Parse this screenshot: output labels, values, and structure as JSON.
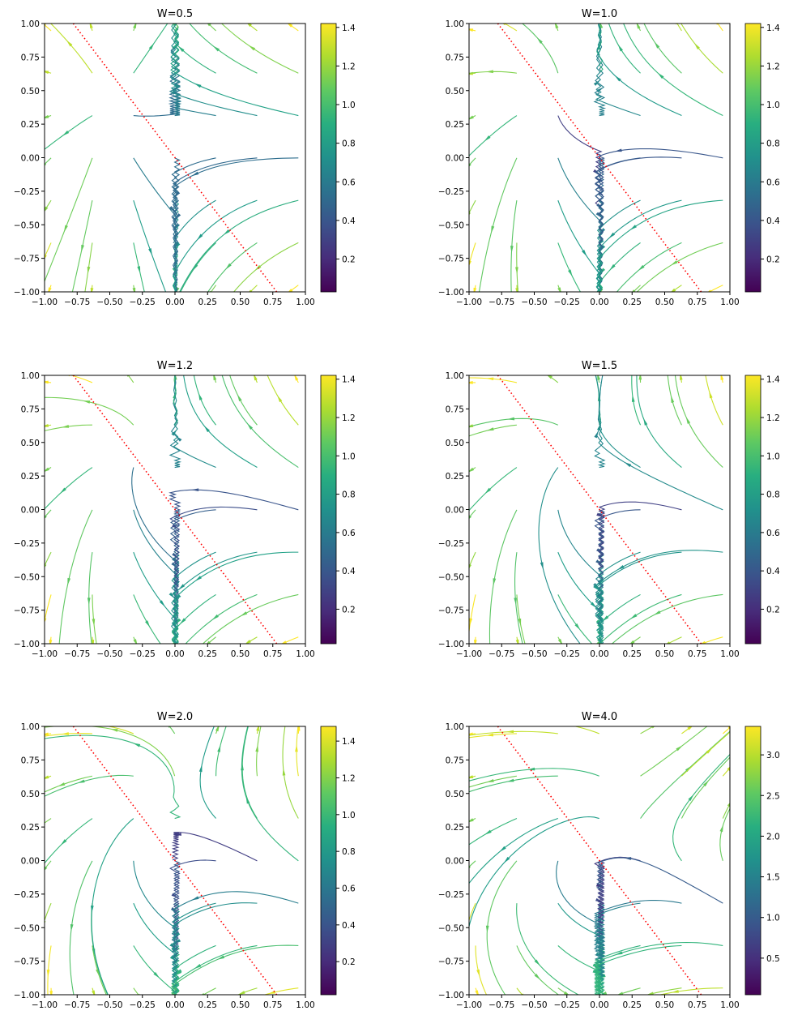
{
  "figure": {
    "colormap": "viridis",
    "line_color": "#ff0000",
    "frame_color": "#000000"
  },
  "chart_data": [
    {
      "type": "streamplot",
      "title": "W=0.5",
      "xlim": [
        -1,
        1
      ],
      "ylim": [
        -1,
        1
      ],
      "x_ticks": [
        -1.0,
        -0.75,
        -0.5,
        -0.25,
        0.0,
        0.25,
        0.5,
        0.75,
        1.0
      ],
      "y_ticks": [
        -1.0,
        -0.75,
        -0.5,
        -0.25,
        0.0,
        0.25,
        0.5,
        0.75,
        1.0
      ],
      "x_tick_labels": [
        "−1.00",
        "−0.75",
        "−0.50",
        "−0.25",
        "0.00",
        "0.25",
        "0.50",
        "0.75",
        "1.00"
      ],
      "y_tick_labels": [
        "−1.00",
        "−0.75",
        "−0.50",
        "−0.25",
        "0.00",
        "0.25",
        "0.50",
        "0.75",
        "1.00"
      ],
      "W": 0.5,
      "colorbar": {
        "min": 0.03,
        "max": 1.42,
        "ticks": [
          0.2,
          0.4,
          0.6,
          0.8,
          1.0,
          1.2,
          1.4
        ],
        "tick_labels": [
          "0.2",
          "0.4",
          "0.6",
          "0.8",
          "1.0",
          "1.2",
          "1.4"
        ]
      },
      "dotted_line": {
        "x": [
          -0.78,
          0.78
        ],
        "y": [
          1.0,
          -1.0
        ],
        "color": "#ff0000",
        "style": "dotted"
      },
      "grid": false
    },
    {
      "type": "streamplot",
      "title": "W=1.0",
      "xlim": [
        -1,
        1
      ],
      "ylim": [
        -1,
        1
      ],
      "x_ticks": [
        -1.0,
        -0.75,
        -0.5,
        -0.25,
        0.0,
        0.25,
        0.5,
        0.75,
        1.0
      ],
      "y_ticks": [
        -1.0,
        -0.75,
        -0.5,
        -0.25,
        0.0,
        0.25,
        0.5,
        0.75,
        1.0
      ],
      "x_tick_labels": [
        "−1.00",
        "−0.75",
        "−0.50",
        "−0.25",
        "0.00",
        "0.25",
        "0.50",
        "0.75",
        "1.00"
      ],
      "y_tick_labels": [
        "−1.00",
        "−0.75",
        "−0.50",
        "−0.25",
        "0.00",
        "0.25",
        "0.50",
        "0.75",
        "1.00"
      ],
      "W": 1.0,
      "colorbar": {
        "min": 0.03,
        "max": 1.42,
        "ticks": [
          0.2,
          0.4,
          0.6,
          0.8,
          1.0,
          1.2,
          1.4
        ],
        "tick_labels": [
          "0.2",
          "0.4",
          "0.6",
          "0.8",
          "1.0",
          "1.2",
          "1.4"
        ]
      },
      "dotted_line": {
        "x": [
          -0.78,
          0.78
        ],
        "y": [
          1.0,
          -1.0
        ],
        "color": "#ff0000",
        "style": "dotted"
      },
      "grid": false
    },
    {
      "type": "streamplot",
      "title": "W=1.2",
      "xlim": [
        -1,
        1
      ],
      "ylim": [
        -1,
        1
      ],
      "x_ticks": [
        -1.0,
        -0.75,
        -0.5,
        -0.25,
        0.0,
        0.25,
        0.5,
        0.75,
        1.0
      ],
      "y_ticks": [
        -1.0,
        -0.75,
        -0.5,
        -0.25,
        0.0,
        0.25,
        0.5,
        0.75,
        1.0
      ],
      "x_tick_labels": [
        "−1.00",
        "−0.75",
        "−0.50",
        "−0.25",
        "0.00",
        "0.25",
        "0.50",
        "0.75",
        "1.00"
      ],
      "y_tick_labels": [
        "−1.00",
        "−0.75",
        "−0.50",
        "−0.25",
        "0.00",
        "0.25",
        "0.50",
        "0.75",
        "1.00"
      ],
      "W": 1.2,
      "colorbar": {
        "min": 0.02,
        "max": 1.42,
        "ticks": [
          0.2,
          0.4,
          0.6,
          0.8,
          1.0,
          1.2,
          1.4
        ],
        "tick_labels": [
          "0.2",
          "0.4",
          "0.6",
          "0.8",
          "1.0",
          "1.2",
          "1.4"
        ]
      },
      "dotted_line": {
        "x": [
          -0.78,
          0.78
        ],
        "y": [
          1.0,
          -1.0
        ],
        "color": "#ff0000",
        "style": "dotted"
      },
      "grid": false
    },
    {
      "type": "streamplot",
      "title": "W=1.5",
      "xlim": [
        -1,
        1
      ],
      "ylim": [
        -1,
        1
      ],
      "x_ticks": [
        -1.0,
        -0.75,
        -0.5,
        -0.25,
        0.0,
        0.25,
        0.5,
        0.75,
        1.0
      ],
      "y_ticks": [
        -1.0,
        -0.75,
        -0.5,
        -0.25,
        0.0,
        0.25,
        0.5,
        0.75,
        1.0
      ],
      "x_tick_labels": [
        "−1.00",
        "−0.75",
        "−0.50",
        "−0.25",
        "0.00",
        "0.25",
        "0.50",
        "0.75",
        "1.00"
      ],
      "y_tick_labels": [
        "−1.00",
        "−0.75",
        "−0.50",
        "−0.25",
        "0.00",
        "0.25",
        "0.50",
        "0.75",
        "1.00"
      ],
      "W": 1.5,
      "colorbar": {
        "min": 0.02,
        "max": 1.42,
        "ticks": [
          0.2,
          0.4,
          0.6,
          0.8,
          1.0,
          1.2,
          1.4
        ],
        "tick_labels": [
          "0.2",
          "0.4",
          "0.6",
          "0.8",
          "1.0",
          "1.2",
          "1.4"
        ]
      },
      "dotted_line": {
        "x": [
          -0.78,
          0.78
        ],
        "y": [
          1.0,
          -1.0
        ],
        "color": "#ff0000",
        "style": "dotted"
      },
      "grid": false
    },
    {
      "type": "streamplot",
      "title": "W=2.0",
      "xlim": [
        -1,
        1
      ],
      "ylim": [
        -1,
        1
      ],
      "x_ticks": [
        -1.0,
        -0.75,
        -0.5,
        -0.25,
        0.0,
        0.25,
        0.5,
        0.75,
        1.0
      ],
      "y_ticks": [
        -1.0,
        -0.75,
        -0.5,
        -0.25,
        0.0,
        0.25,
        0.5,
        0.75,
        1.0
      ],
      "x_tick_labels": [
        "−1.00",
        "−0.75",
        "−0.50",
        "−0.25",
        "0.00",
        "0.25",
        "0.50",
        "0.75",
        "1.00"
      ],
      "y_tick_labels": [
        "−1.00",
        "−0.75",
        "−0.50",
        "−0.25",
        "0.00",
        "0.25",
        "0.50",
        "0.75",
        "1.00"
      ],
      "W": 2.0,
      "colorbar": {
        "min": 0.02,
        "max": 1.48,
        "ticks": [
          0.2,
          0.4,
          0.6,
          0.8,
          1.0,
          1.2,
          1.4
        ],
        "tick_labels": [
          "0.2",
          "0.4",
          "0.6",
          "0.8",
          "1.0",
          "1.2",
          "1.4"
        ]
      },
      "dotted_line": {
        "x": [
          -0.78,
          0.78
        ],
        "y": [
          1.0,
          -1.0
        ],
        "color": "#ff0000",
        "style": "dotted"
      },
      "grid": false
    },
    {
      "type": "streamplot",
      "title": "W=4.0",
      "xlim": [
        -1,
        1
      ],
      "ylim": [
        -1,
        1
      ],
      "x_ticks": [
        -1.0,
        -0.75,
        -0.5,
        -0.25,
        0.0,
        0.25,
        0.5,
        0.75,
        1.0
      ],
      "y_ticks": [
        -1.0,
        -0.75,
        -0.5,
        -0.25,
        0.0,
        0.25,
        0.5,
        0.75,
        1.0
      ],
      "x_tick_labels": [
        "−1.00",
        "−0.75",
        "−0.50",
        "−0.25",
        "0.00",
        "0.25",
        "0.50",
        "0.75",
        "1.00"
      ],
      "y_tick_labels": [
        "−1.00",
        "−0.75",
        "−0.50",
        "−0.25",
        "0.00",
        "0.25",
        "0.50",
        "0.75",
        "1.00"
      ],
      "W": 4.0,
      "colorbar": {
        "min": 0.05,
        "max": 3.35,
        "ticks": [
          0.5,
          1.0,
          1.5,
          2.0,
          2.5,
          3.0
        ],
        "tick_labels": [
          "0.5",
          "1.0",
          "1.5",
          "2.0",
          "2.5",
          "3.0"
        ]
      },
      "dotted_line": {
        "x": [
          -0.78,
          0.78
        ],
        "y": [
          1.0,
          -1.0
        ],
        "color": "#ff0000",
        "style": "dotted"
      },
      "grid": false
    }
  ]
}
